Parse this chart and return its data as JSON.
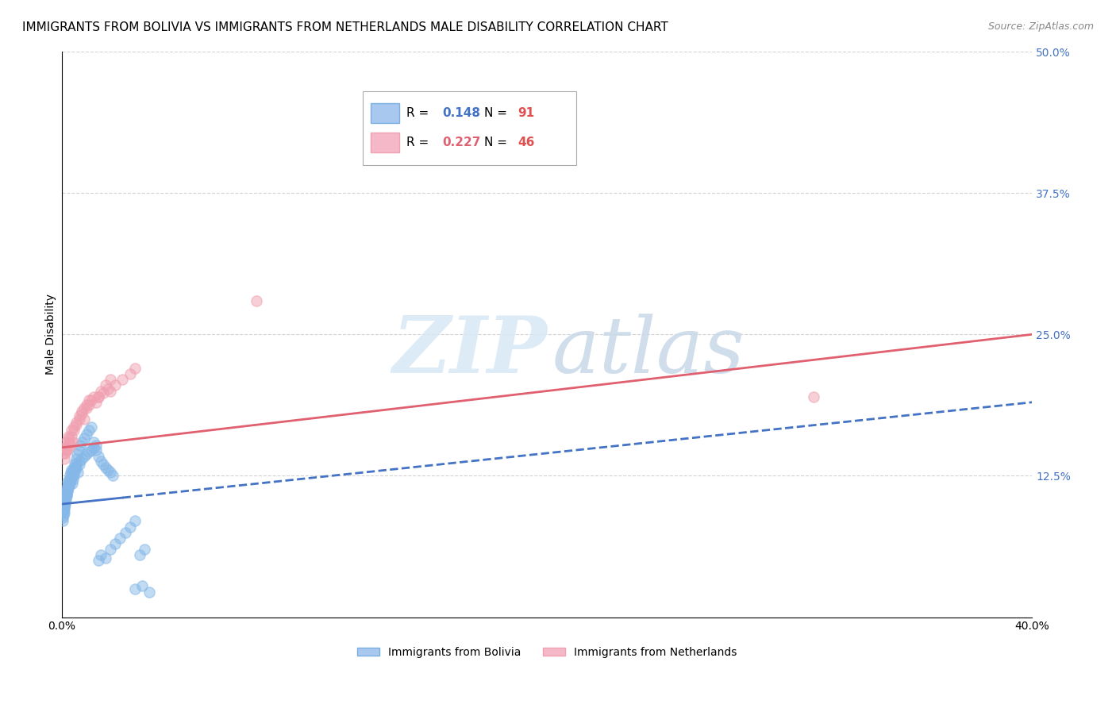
{
  "title": "IMMIGRANTS FROM BOLIVIA VS IMMIGRANTS FROM NETHERLANDS MALE DISABILITY CORRELATION CHART",
  "source": "Source: ZipAtlas.com",
  "ylabel": "Male Disability",
  "xlim": [
    0.0,
    0.4
  ],
  "ylim": [
    0.0,
    0.5
  ],
  "xtick_positions": [
    0.0,
    0.1,
    0.2,
    0.3,
    0.4
  ],
  "xtick_labels": [
    "0.0%",
    "",
    "",
    "",
    "40.0%"
  ],
  "yticks_right": [
    0.125,
    0.25,
    0.375,
    0.5
  ],
  "ytick_labels_right": [
    "12.5%",
    "25.0%",
    "37.5%",
    "50.0%"
  ],
  "bolivia": {
    "name": "Immigrants from Bolivia",
    "marker_color": "#85b8e8",
    "R": "0.148",
    "N": "91",
    "R_color": "#4472c4",
    "N_color": "#e05050",
    "x": [
      0.0005,
      0.001,
      0.0008,
      0.0012,
      0.0015,
      0.0018,
      0.002,
      0.0022,
      0.0025,
      0.003,
      0.0032,
      0.0035,
      0.004,
      0.0042,
      0.0045,
      0.005,
      0.0055,
      0.006,
      0.0065,
      0.007,
      0.0008,
      0.001,
      0.0013,
      0.0016,
      0.0019,
      0.0023,
      0.0028,
      0.0033,
      0.0038,
      0.0043,
      0.0048,
      0.0052,
      0.0058,
      0.0062,
      0.0068,
      0.0075,
      0.008,
      0.009,
      0.01,
      0.011,
      0.012,
      0.013,
      0.014,
      0.015,
      0.016,
      0.017,
      0.018,
      0.019,
      0.02,
      0.021,
      0.0003,
      0.0004,
      0.0005,
      0.0006,
      0.0007,
      0.0009,
      0.0011,
      0.0014,
      0.0017,
      0.002,
      0.0024,
      0.0027,
      0.0031,
      0.0036,
      0.004,
      0.0044,
      0.005,
      0.0055,
      0.006,
      0.007,
      0.008,
      0.009,
      0.01,
      0.011,
      0.012,
      0.013,
      0.014,
      0.015,
      0.016,
      0.018,
      0.02,
      0.022,
      0.024,
      0.026,
      0.028,
      0.03,
      0.032,
      0.034,
      0.036,
      0.03,
      0.033
    ],
    "y": [
      0.095,
      0.105,
      0.098,
      0.11,
      0.112,
      0.108,
      0.115,
      0.12,
      0.118,
      0.122,
      0.125,
      0.128,
      0.13,
      0.118,
      0.122,
      0.125,
      0.13,
      0.132,
      0.128,
      0.135,
      0.092,
      0.096,
      0.1,
      0.104,
      0.108,
      0.112,
      0.116,
      0.12,
      0.124,
      0.128,
      0.132,
      0.136,
      0.14,
      0.144,
      0.148,
      0.152,
      0.155,
      0.158,
      0.162,
      0.165,
      0.168,
      0.155,
      0.148,
      0.142,
      0.138,
      0.135,
      0.132,
      0.13,
      0.128,
      0.125,
      0.085,
      0.088,
      0.09,
      0.093,
      0.095,
      0.098,
      0.1,
      0.103,
      0.106,
      0.109,
      0.112,
      0.115,
      0.118,
      0.121,
      0.124,
      0.127,
      0.13,
      0.133,
      0.136,
      0.138,
      0.14,
      0.142,
      0.144,
      0.146,
      0.148,
      0.15,
      0.152,
      0.05,
      0.055,
      0.052,
      0.06,
      0.065,
      0.07,
      0.075,
      0.08,
      0.085,
      0.055,
      0.06,
      0.022,
      0.025,
      0.028
    ]
  },
  "netherlands": {
    "name": "Immigrants from Netherlands",
    "marker_color": "#f0a0b0",
    "R": "0.227",
    "N": "46",
    "R_color": "#e06070",
    "N_color": "#e05050",
    "x": [
      0.0005,
      0.001,
      0.0015,
      0.002,
      0.0025,
      0.003,
      0.0035,
      0.004,
      0.0045,
      0.005,
      0.006,
      0.007,
      0.008,
      0.009,
      0.01,
      0.011,
      0.012,
      0.013,
      0.014,
      0.015,
      0.016,
      0.017,
      0.018,
      0.019,
      0.02,
      0.0008,
      0.0012,
      0.0018,
      0.0025,
      0.003,
      0.004,
      0.005,
      0.006,
      0.007,
      0.008,
      0.009,
      0.01,
      0.011,
      0.015,
      0.02,
      0.022,
      0.025,
      0.028,
      0.03,
      0.08,
      0.31
    ],
    "y": [
      0.145,
      0.15,
      0.155,
      0.148,
      0.16,
      0.158,
      0.152,
      0.165,
      0.155,
      0.168,
      0.172,
      0.178,
      0.182,
      0.175,
      0.185,
      0.188,
      0.192,
      0.195,
      0.19,
      0.195,
      0.2,
      0.198,
      0.205,
      0.202,
      0.21,
      0.14,
      0.145,
      0.148,
      0.152,
      0.155,
      0.16,
      0.165,
      0.17,
      0.175,
      0.18,
      0.185,
      0.188,
      0.192,
      0.195,
      0.2,
      0.205,
      0.21,
      0.215,
      0.22,
      0.28,
      0.195
    ]
  },
  "bolivia_trend": {
    "x_solid_end": 0.025,
    "x_full_end": 0.4,
    "y_start": 0.1,
    "y_end": 0.19,
    "color": "#4472c4",
    "linewidth": 2.0
  },
  "netherlands_trend": {
    "x_start": 0.0,
    "x_end": 0.4,
    "y_start": 0.15,
    "y_end": 0.25,
    "color": "#e06070",
    "linewidth": 2.0
  },
  "watermark_zip": "ZIP",
  "watermark_atlas": "atlas",
  "title_fontsize": 11,
  "tick_fontsize": 10,
  "right_tick_color": "#4472c4"
}
